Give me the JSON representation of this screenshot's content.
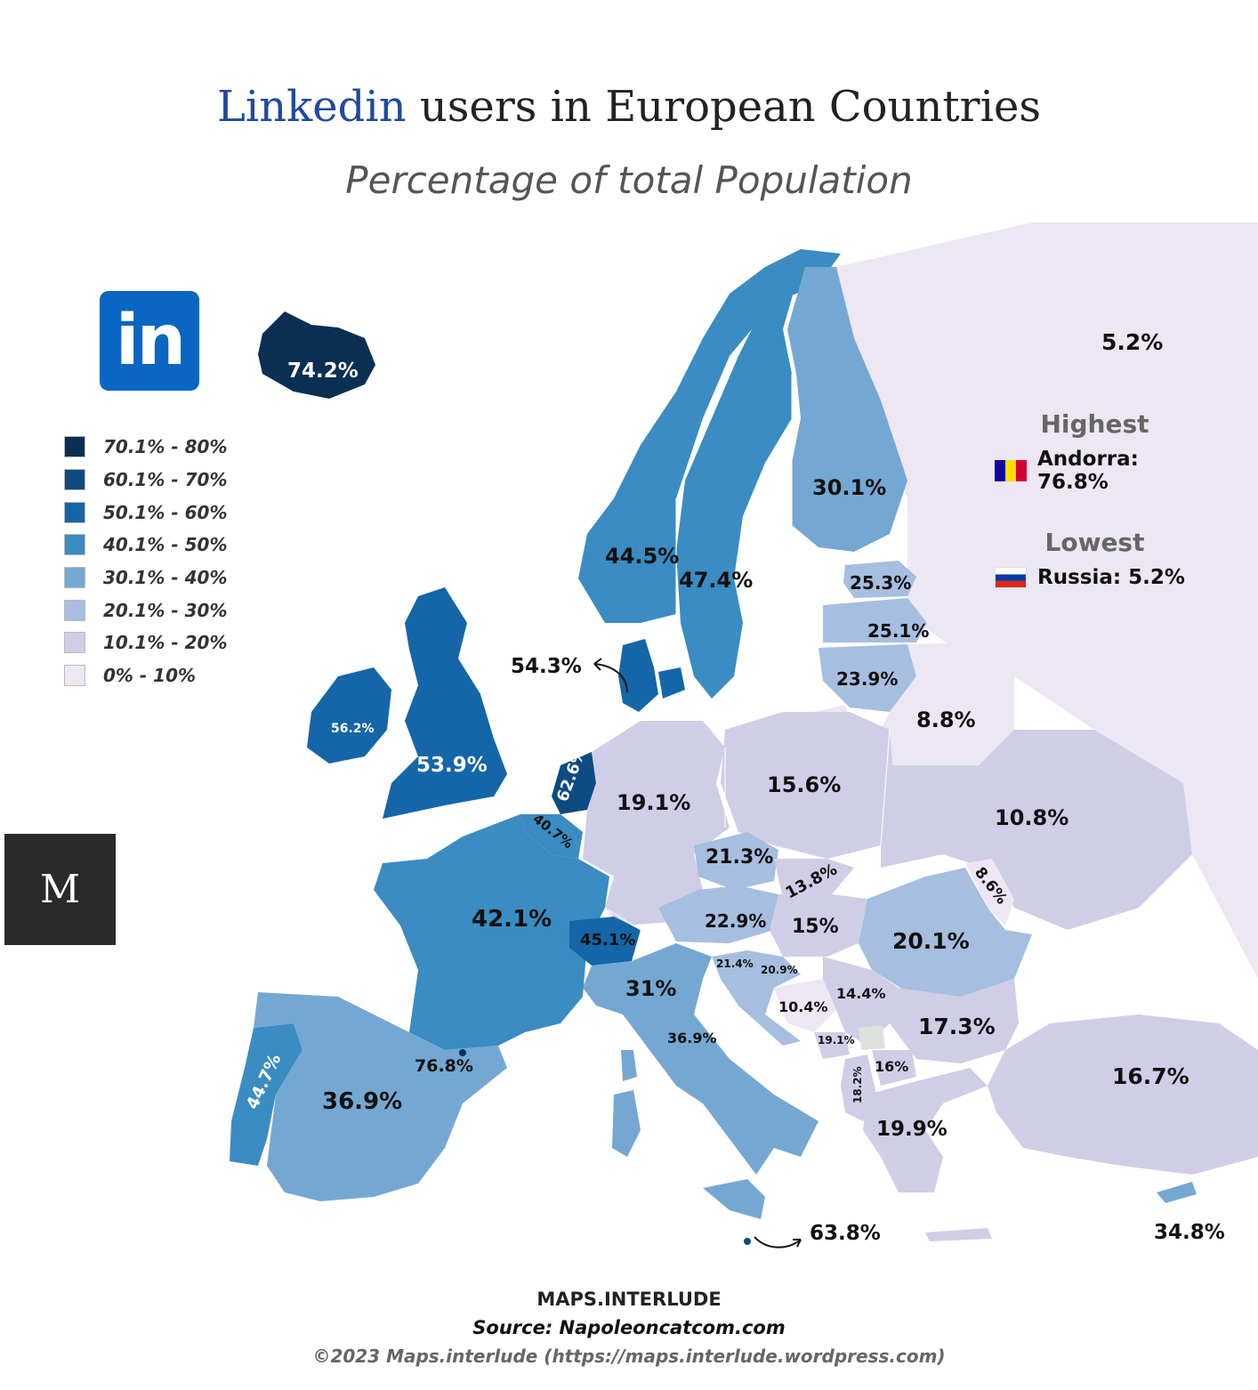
{
  "title": {
    "accent": "Linkedin",
    "rest": " users in European Countries"
  },
  "subtitle": "Percentage of total Population",
  "logos": {
    "linkedin_text": "in",
    "brand_text": "M"
  },
  "legend": [
    {
      "label": "70.1% - 80%",
      "color": "#0a2f52"
    },
    {
      "label": "60.1% - 70%",
      "color": "#0d4b80"
    },
    {
      "label": "50.1% - 60%",
      "color": "#1466a8"
    },
    {
      "label": "40.1% - 50%",
      "color": "#3a8cc2"
    },
    {
      "label": "30.1% - 40%",
      "color": "#74a8d2"
    },
    {
      "label": "20.1% - 30%",
      "color": "#a6bedf"
    },
    {
      "label": "10.1% - 20%",
      "color": "#cfcee6"
    },
    {
      "label": "0% - 10%",
      "color": "#ece7f3"
    }
  ],
  "callout": {
    "highest_heading": "Highest",
    "highest_value": "Andorra: 76.8%",
    "lowest_heading": "Lowest",
    "lowest_value": "Russia: 5.2%"
  },
  "countries": [
    {
      "name": "Iceland",
      "value": "74.2%"
    },
    {
      "name": "Norway",
      "value": "44.5%"
    },
    {
      "name": "Sweden",
      "value": "47.4%"
    },
    {
      "name": "Finland",
      "value": "30.1%"
    },
    {
      "name": "Russia",
      "value": "5.2%"
    },
    {
      "name": "Estonia",
      "value": "25.3%"
    },
    {
      "name": "Latvia",
      "value": "25.1%"
    },
    {
      "name": "Lithuania",
      "value": "23.9%"
    },
    {
      "name": "Belarus",
      "value": "8.8%"
    },
    {
      "name": "Denmark",
      "value": "54.3%"
    },
    {
      "name": "Ireland",
      "value": "56.2%"
    },
    {
      "name": "United Kingdom",
      "value": "53.9%"
    },
    {
      "name": "Netherlands",
      "value": "62.6%"
    },
    {
      "name": "Belgium",
      "value": "40.7%"
    },
    {
      "name": "Germany",
      "value": "19.1%"
    },
    {
      "name": "Poland",
      "value": "15.6%"
    },
    {
      "name": "Ukraine",
      "value": "10.8%"
    },
    {
      "name": "Czechia",
      "value": "21.3%"
    },
    {
      "name": "Slovakia",
      "value": "13.8%"
    },
    {
      "name": "Moldova",
      "value": "8.6%"
    },
    {
      "name": "France",
      "value": "42.1%"
    },
    {
      "name": "Austria",
      "value": "22.9%"
    },
    {
      "name": "Hungary",
      "value": "15%"
    },
    {
      "name": "Romania",
      "value": "20.1%"
    },
    {
      "name": "Switzerland",
      "value": "45.1%"
    },
    {
      "name": "Slovenia",
      "value": "21.4%"
    },
    {
      "name": "Croatia",
      "value": "20.9%"
    },
    {
      "name": "Italy",
      "value": "31%"
    },
    {
      "name": "Serbia",
      "value": "14.4%"
    },
    {
      "name": "Bosnia and Herzegovina",
      "value": "10.4%"
    },
    {
      "name": "Bulgaria",
      "value": "17.3%"
    },
    {
      "name": "San Marino",
      "value": "36.9%"
    },
    {
      "name": "Montenegro",
      "value": "19.1%"
    },
    {
      "name": "North Macedonia",
      "value": "16%"
    },
    {
      "name": "Albania",
      "value": "18.2%"
    },
    {
      "name": "Portugal",
      "value": "44.7%"
    },
    {
      "name": "Andorra",
      "value": "76.8%"
    },
    {
      "name": "Spain",
      "value": "36.9%"
    },
    {
      "name": "Greece",
      "value": "19.9%"
    },
    {
      "name": "Turkey",
      "value": "16.7%"
    },
    {
      "name": "Malta",
      "value": "63.8%"
    },
    {
      "name": "Cyprus",
      "value": "34.8%"
    }
  ],
  "footer": {
    "brand": "MAPS.INTERLUDE",
    "source": "Source: Napoleoncatcom.com",
    "copyright": "©2023 Maps.interlude (https://maps.interlude.wordpress.com)"
  }
}
